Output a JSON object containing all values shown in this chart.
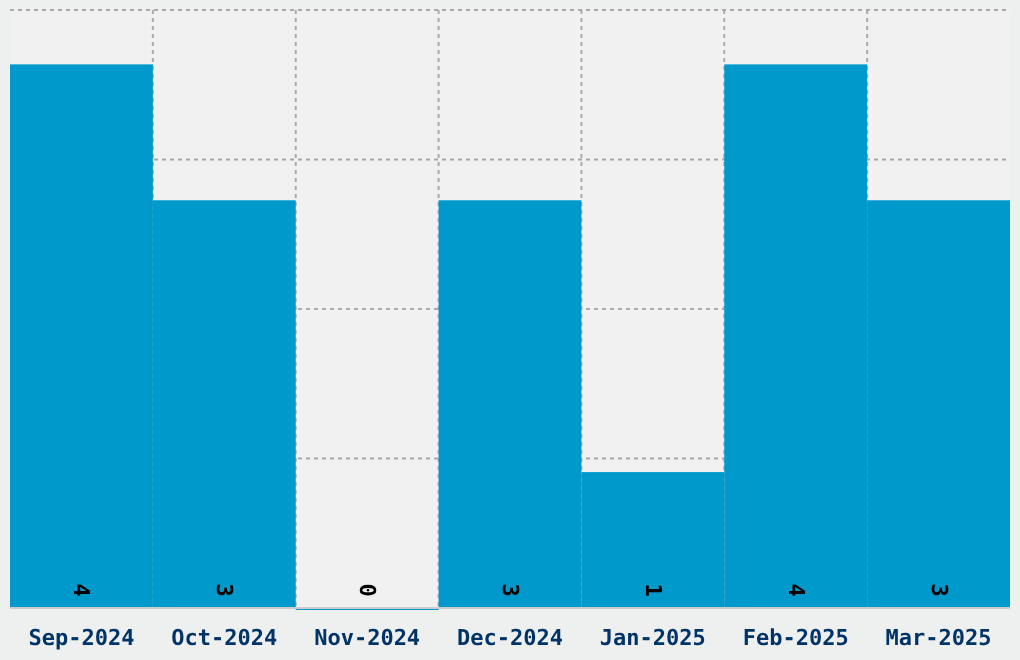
{
  "chart_data": {
    "type": "bar",
    "categories": [
      "Sep-2024",
      "Oct-2024",
      "Nov-2024",
      "Dec-2024",
      "Jan-2025",
      "Feb-2025",
      "Mar-2025"
    ],
    "values": [
      4,
      3,
      0,
      3,
      1,
      4,
      3
    ],
    "color": "#0099cc",
    "ylim": [
      0,
      4.4
    ],
    "yticks": [
      {
        "value": 1.1,
        "label": null
      },
      {
        "value": 2.2,
        "label": null
      },
      {
        "value": 3.3,
        "label": null
      },
      {
        "value": 4.4,
        "label": null
      }
    ],
    "grid": true,
    "data_labels": true,
    "tick_labels": "x"
  }
}
